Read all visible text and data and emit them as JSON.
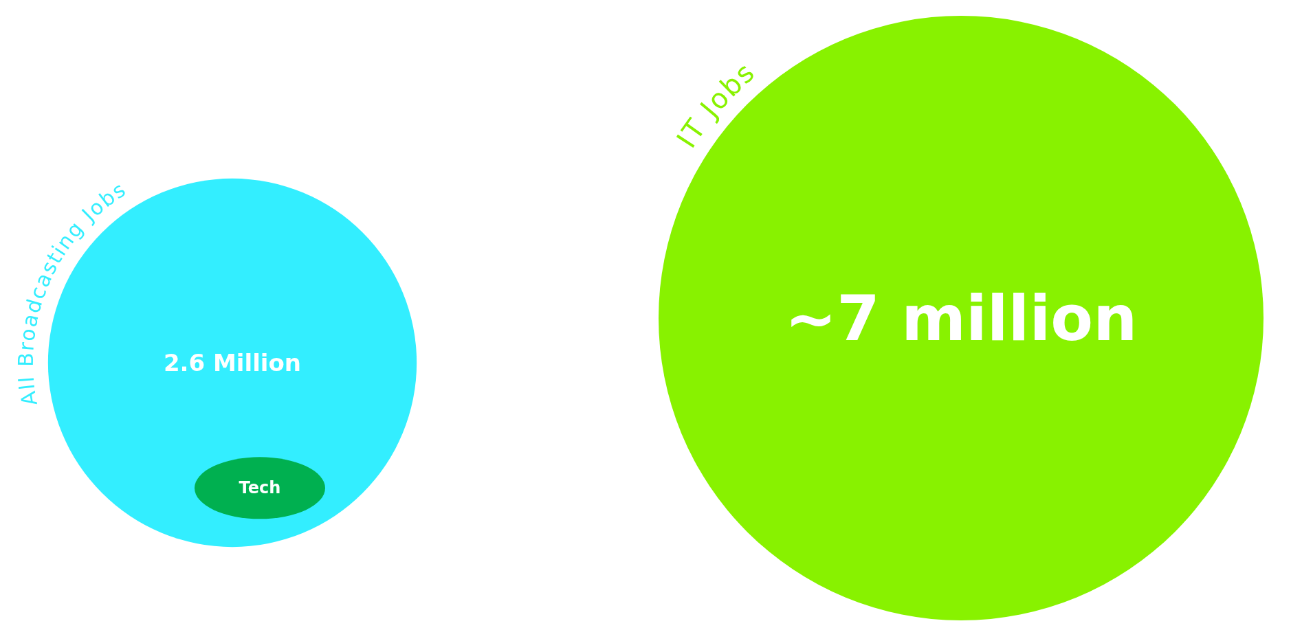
{
  "chart_data": {
    "type": "other",
    "categories": [
      "All Broadcasting Jobs",
      "IT Jobs"
    ],
    "values": [
      2.6,
      7
    ],
    "value_labels": [
      "2.6 Million",
      "~7 million"
    ],
    "colors": [
      "#33eeff",
      "#88f200"
    ],
    "annotations": [
      "Tech"
    ]
  }
}
